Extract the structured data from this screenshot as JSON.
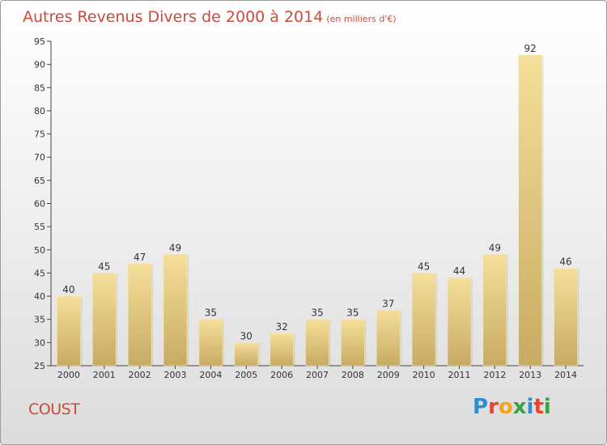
{
  "header": {
    "title": "Autres Revenus Divers de 2000 à 2014",
    "subtitle": "(en milliers d'€)"
  },
  "footer": {
    "town": "COUST",
    "logo": "Proxiti"
  },
  "colors": {
    "title": "#cc4a3a",
    "bar_top": "#f5df9a",
    "bar_bottom": "#c8ab63"
  },
  "chart_data": {
    "type": "bar",
    "title": "Autres Revenus Divers de 2000 à 2014",
    "subtitle": "(en milliers d'€)",
    "categories": [
      "2000",
      "2001",
      "2002",
      "2003",
      "2004",
      "2005",
      "2006",
      "2007",
      "2008",
      "2009",
      "2010",
      "2011",
      "2012",
      "2013",
      "2014"
    ],
    "values": [
      40,
      45,
      47,
      49,
      35,
      30,
      32,
      35,
      35,
      37,
      45,
      44,
      49,
      92,
      46
    ],
    "ylim": [
      25,
      95
    ],
    "yticks": [
      25,
      30,
      35,
      40,
      45,
      50,
      55,
      60,
      65,
      70,
      75,
      80,
      85,
      90,
      95
    ],
    "grid": false,
    "data_labels": true
  }
}
